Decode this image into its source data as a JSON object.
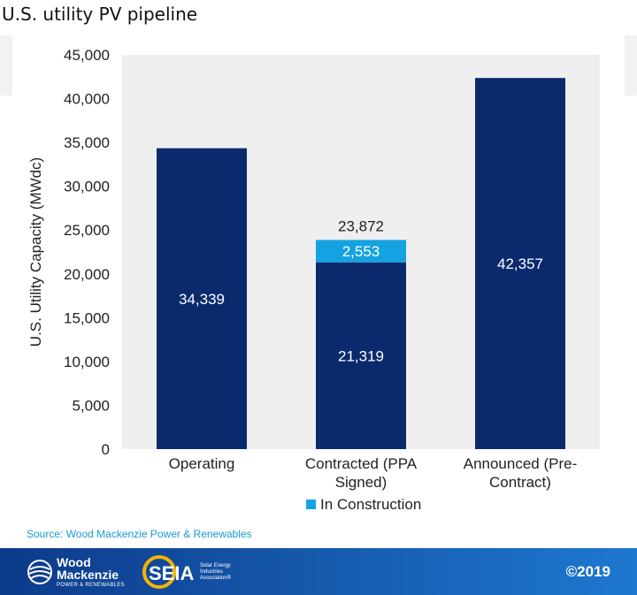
{
  "header": {
    "title": "U.S. utility PV pipeline"
  },
  "footer": {
    "source": "Source: Wood Mackenzie Power & Renewables",
    "copyright": "©2019",
    "logo_wm": {
      "line1": "Wood",
      "line2": "Mackenzie",
      "line3": "POWER & RENEWABLES"
    },
    "logo_seia": {
      "mark": "SEIA",
      "line1": "Solar Energy",
      "line2": "Industries",
      "line3": "Association®"
    }
  },
  "colors": {
    "primary": "#0b2a6e",
    "in_construction": "#14a3e0",
    "plot_bg": "#efefef",
    "source_text": "#1a9ad6"
  },
  "chart_data": {
    "type": "bar",
    "stacked": true,
    "categories": [
      [
        "Operating"
      ],
      [
        "Contracted (PPA",
        "Signed)"
      ],
      [
        "Announced (Pre-",
        "Contract)"
      ]
    ],
    "series": [
      {
        "values": [
          34339,
          21319,
          42357
        ],
        "labels": [
          "34,339",
          "21,319",
          "42,357"
        ],
        "color": "#0b2a6e"
      },
      {
        "name": "In Construction",
        "values": [
          0,
          2553,
          0
        ],
        "labels": [
          "",
          "2,553",
          ""
        ],
        "color": "#14a3e0"
      }
    ],
    "totals": [
      null,
      "23,872",
      null
    ],
    "ylabel": "U.S. Utility Capacity (MWdc)",
    "ylim": [
      0,
      45000
    ],
    "yticks": [
      0,
      5000,
      10000,
      15000,
      20000,
      25000,
      30000,
      35000,
      40000,
      45000
    ],
    "ytick_labels": [
      "0",
      "5,000",
      "10,000",
      "15,000",
      "20,000",
      "25,000",
      "30,000",
      "35,000",
      "40,000",
      "45,000"
    ],
    "legend": {
      "position": "bottom",
      "entries": [
        "In Construction"
      ]
    },
    "grid": false
  }
}
